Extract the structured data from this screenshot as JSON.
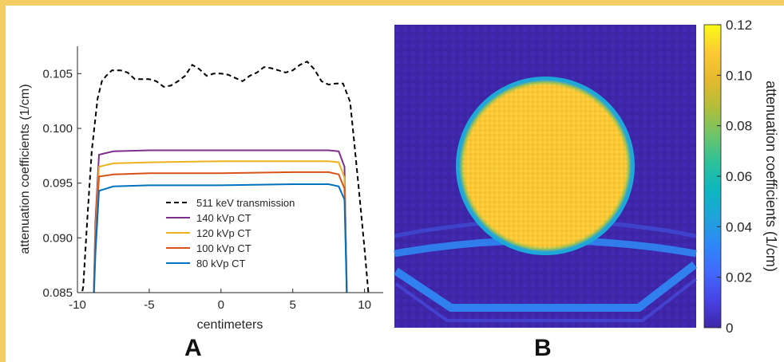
{
  "panels": {
    "left_label": "A",
    "right_label": "B"
  },
  "colors": {
    "border": "#F5CE63",
    "bg_blue": "#3E26A8"
  },
  "chart_data": [
    {
      "type": "line",
      "xlabel": "centimeters",
      "ylabel": "attenuation coefficients (1/cm)",
      "xlim": [
        -10,
        11.3
      ],
      "ylim": [
        0.085,
        0.1075
      ],
      "xticks": [
        -10,
        -5,
        0,
        5,
        10
      ],
      "xtick_labels": [
        "-10",
        "-5",
        "0",
        "5",
        "10"
      ],
      "yticks": [
        0.085,
        0.09,
        0.095,
        0.1,
        0.105
      ],
      "ytick_labels": [
        "0.085",
        "0.090",
        "0.095",
        "0.100",
        "0.105"
      ],
      "legend_position": "center",
      "series": [
        {
          "name": "511 keV transmission",
          "color": "#000000",
          "dash": "dashed",
          "x": [
            -10,
            -9.6,
            -9.3,
            -9,
            -8.6,
            -8.3,
            -8,
            -7.6,
            -7,
            -6.5,
            -6,
            -5.5,
            -5,
            -4.5,
            -4,
            -3.5,
            -3,
            -2.5,
            -2,
            -1.5,
            -1,
            -0.5,
            0,
            0.5,
            1,
            1.5,
            2,
            2.5,
            3,
            3.5,
            4,
            4.5,
            5,
            5.5,
            6,
            6.5,
            7,
            7.5,
            8,
            8.5,
            9,
            9.3,
            9.6,
            10,
            10.4
          ],
          "values": [
            0.083,
            0.0855,
            0.092,
            0.098,
            0.1027,
            0.1043,
            0.1048,
            0.1053,
            0.1053,
            0.1051,
            0.1045,
            0.1045,
            0.1045,
            0.1043,
            0.1038,
            0.1039,
            0.1043,
            0.1048,
            0.1058,
            0.1054,
            0.1048,
            0.105,
            0.105,
            0.1049,
            0.1046,
            0.1043,
            0.1048,
            0.1051,
            0.1056,
            0.1055,
            0.1053,
            0.1051,
            0.1053,
            0.1058,
            0.1061,
            0.1054,
            0.1043,
            0.104,
            0.1041,
            0.1041,
            0.1024,
            0.0985,
            0.0945,
            0.089,
            0.083
          ]
        },
        {
          "name": "140 kVp CT",
          "color": "#7E2F8E",
          "dash": "solid",
          "x": [
            -8.9,
            -8.75,
            -8.5,
            -7.5,
            -5,
            0,
            5,
            7.5,
            8.2,
            8.6,
            8.8
          ],
          "values": [
            0.083,
            0.0915,
            0.0976,
            0.0979,
            0.098,
            0.098,
            0.098,
            0.098,
            0.0979,
            0.0965,
            0.083
          ]
        },
        {
          "name": "120 kVp CT",
          "color": "#EDB120",
          "dash": "solid",
          "x": [
            -8.9,
            -8.75,
            -8.5,
            -7.5,
            -5,
            0,
            5,
            7.5,
            8.2,
            8.6,
            8.8
          ],
          "values": [
            0.083,
            0.0905,
            0.0965,
            0.0968,
            0.0969,
            0.097,
            0.097,
            0.097,
            0.0969,
            0.0955,
            0.083
          ]
        },
        {
          "name": "100 kVp CT",
          "color": "#D95319",
          "dash": "solid",
          "x": [
            -8.9,
            -8.75,
            -8.5,
            -7.5,
            -5,
            0,
            5,
            7.5,
            8.2,
            8.6,
            8.8
          ],
          "values": [
            0.083,
            0.0898,
            0.0956,
            0.0958,
            0.0959,
            0.0959,
            0.096,
            0.096,
            0.0958,
            0.0945,
            0.083
          ]
        },
        {
          "name": "80 kVp CT",
          "color": "#0072BD",
          "dash": "solid",
          "x": [
            -8.9,
            -8.75,
            -8.5,
            -7.5,
            -5,
            0,
            5,
            7.5,
            8.2,
            8.6,
            8.8
          ],
          "values": [
            0.083,
            0.0885,
            0.0943,
            0.0947,
            0.0948,
            0.0948,
            0.0949,
            0.0949,
            0.0947,
            0.0935,
            0.083
          ]
        }
      ]
    },
    {
      "type": "heatmap",
      "colorbar_label": "attenuation coefficients (1/cm)",
      "clim": [
        0,
        0.12
      ],
      "colorbar_ticks": [
        0,
        0.02,
        0.04,
        0.06,
        0.08,
        0.1,
        0.12
      ],
      "colorbar_tick_labels": [
        "0",
        "0.02",
        "0.04",
        "0.06",
        "0.08",
        "0.10",
        "0.12"
      ],
      "colormap": [
        "#3E26A8",
        "#4743E6",
        "#4169FE",
        "#2E87F7",
        "#1FA3DA",
        "#0CB7C0",
        "#2CC19A",
        "#6EC46A",
        "#B2BE3A",
        "#E5B92E",
        "#FCC934",
        "#F9FB15"
      ],
      "values": {
        "phantom": 0.1,
        "background": 0.002,
        "table": 0.035
      }
    }
  ]
}
